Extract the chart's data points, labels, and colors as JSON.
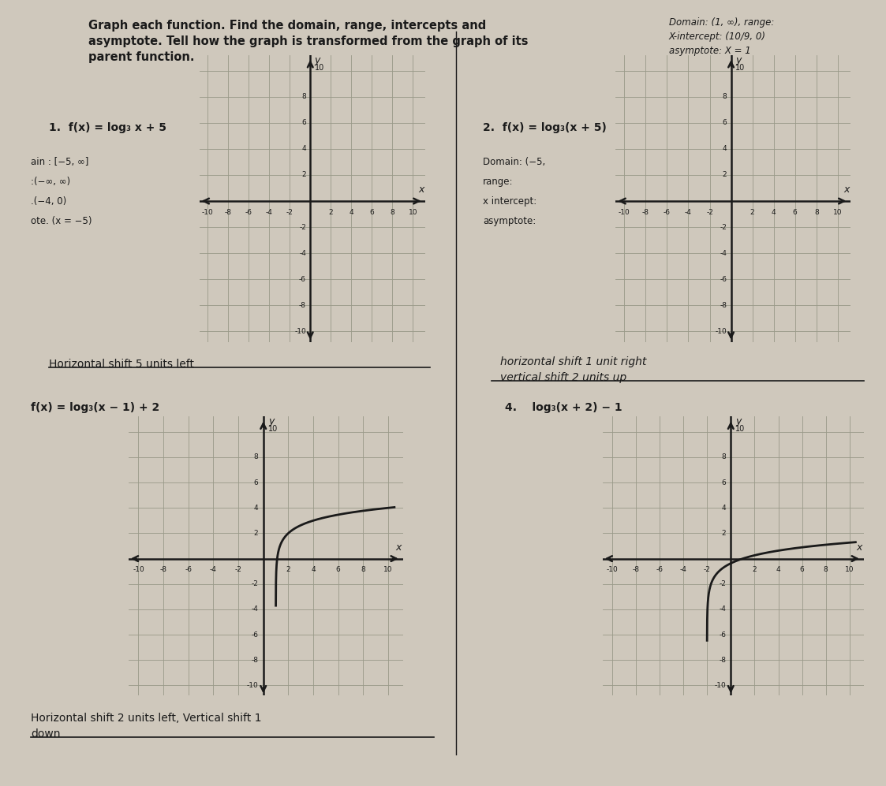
{
  "bg_color": "#cfc8bc",
  "paper_color": "#ddd8cc",
  "grid_color": "#999988",
  "axis_color": "#1a1a1a",
  "curve_color": "#1a1a1a",
  "text_color": "#1a1a1a",
  "header": "Graph each function. Find the domain, range, intercepts and\nasymptote. Tell how the graph is transformed from the graph of its\nparent function.",
  "label1": "1.  f(x) = log₃ x + 5",
  "label2": "2.  f(x) = log₃(x + 5)",
  "label3": "f(x) = log₃(x − 1) + 2",
  "label4": "4.    log₃(x + 2) − 1",
  "side_text1_lines": [
    "ain : [−5, ∞]",
    ":(−∞, ∞)",
    ".(−4, 0)",
    "ote. (x = −5)"
  ],
  "side_text2_lines": [
    "Domain: (−5,",
    "range:",
    "x intercept:",
    "asymptote:"
  ],
  "top_right": "Domain: (1, ∞), range:\nX-intercept: (10/9, 0)\nasymptote: X = 1",
  "transform1": "Horizontal shift 5 units left",
  "transform2_line1": "horizontal shift 1 unit right",
  "transform2_line2": "vertical shift 2 units up",
  "transform34": "Horizontal shift 2 units left, Vertical shift 1",
  "transform34b": "down",
  "plot1_has_curve": false,
  "plot2_has_curve": false,
  "plot3_has_curve": true,
  "plot3_func": "log3_xminus1_plus2",
  "plot4_has_curve": true,
  "plot4_func": "log3_xplus2_minus1",
  "xlim": [
    -10,
    10
  ],
  "ylim": [
    -10,
    10
  ]
}
